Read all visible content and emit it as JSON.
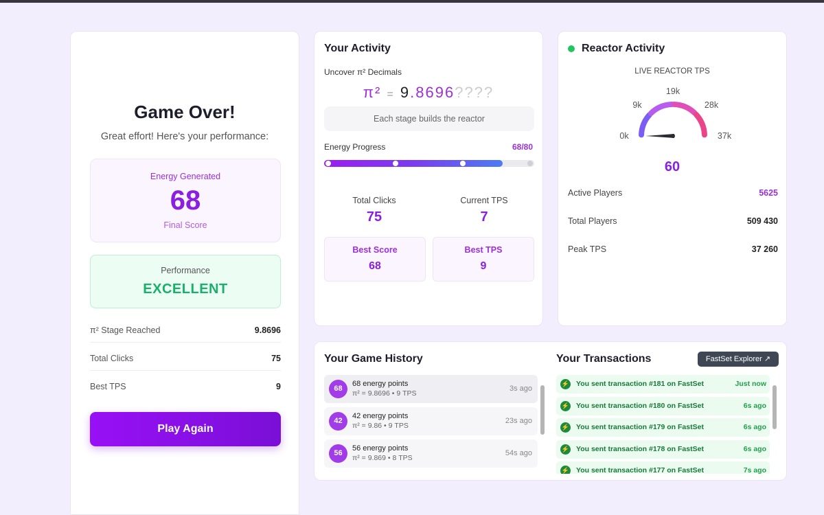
{
  "game_over": {
    "title": "Game Over!",
    "subtitle": "Great effort! Here's your performance:",
    "energy": {
      "label": "Energy Generated",
      "value": 68,
      "caption": "Final Score"
    },
    "performance": {
      "label": "Performance",
      "value": "EXCELLENT"
    },
    "stats": [
      {
        "label": "π² Stage Reached",
        "value": "9.8696"
      },
      {
        "label": "Total Clicks",
        "value": 75
      },
      {
        "label": "Best TPS",
        "value": 9
      }
    ],
    "button": "Play Again"
  },
  "activity": {
    "title": "Your Activity",
    "decimals_label": "Uncover π² Decimals",
    "pi": {
      "symbol": "π²",
      "equals": "=",
      "integer": "9",
      "point": ".",
      "digits": "8696",
      "hidden": "????"
    },
    "stage_note": "Each stage builds the reactor",
    "progress": {
      "label": "Energy Progress",
      "text": "68/80",
      "value": 68,
      "max": 80
    },
    "stats": [
      {
        "label": "Total Clicks",
        "value": 75
      },
      {
        "label": "Current TPS",
        "value": 7
      }
    ],
    "bests": [
      {
        "label": "Best Score",
        "value": 68
      },
      {
        "label": "Best TPS",
        "value": 9
      }
    ]
  },
  "reactor": {
    "title": "Reactor Activity",
    "gauge_label": "LIVE REACTOR TPS",
    "gauge_ticks": [
      "0k",
      "9k",
      "19k",
      "28k",
      "37k"
    ],
    "value": 60,
    "stats": [
      {
        "label": "Active Players",
        "value": 5625
      },
      {
        "label": "Total Players",
        "value": "509 430"
      },
      {
        "label": "Peak TPS",
        "value": "37 260"
      }
    ]
  },
  "history": {
    "title": "Your Game History",
    "items": [
      {
        "badge": 68,
        "title": "68 energy points",
        "detail": "π² = 9.8696 • 9 TPS",
        "time": "3s ago"
      },
      {
        "badge": 42,
        "title": "42 energy points",
        "detail": "π² = 9.86 • 9 TPS",
        "time": "23s ago"
      },
      {
        "badge": 56,
        "title": "56 energy points",
        "detail": "π² = 9.869 • 8 TPS",
        "time": "54s ago"
      }
    ]
  },
  "transactions": {
    "title": "Your Transactions",
    "button": "FastSet Explorer",
    "items": [
      {
        "text": "You sent transaction #181 on FastSet",
        "time": "Just now"
      },
      {
        "text": "You sent transaction #180 on FastSet",
        "time": "6s ago"
      },
      {
        "text": "You sent transaction #179 on FastSet",
        "time": "6s ago"
      },
      {
        "text": "You sent transaction #178 on FastSet",
        "time": "6s ago"
      },
      {
        "text": "You sent transaction #177 on FastSet",
        "time": "7s ago"
      }
    ]
  }
}
